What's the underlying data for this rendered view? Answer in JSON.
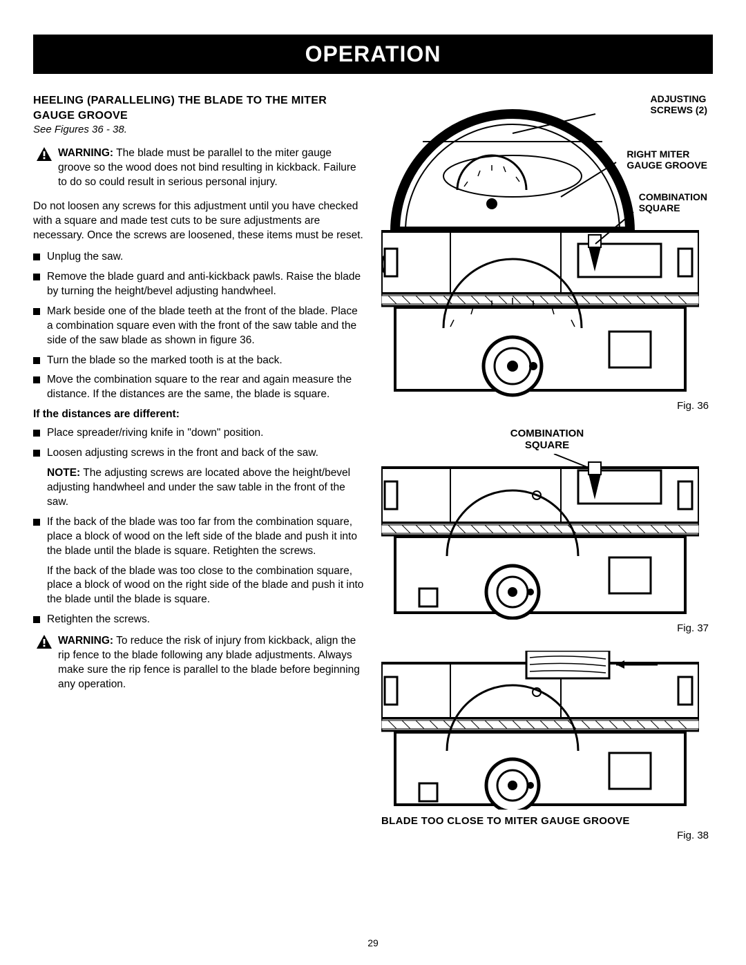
{
  "header": "OPERATION",
  "pageNumber": "29",
  "left": {
    "title": "HEELING (PARALLELING) THE BLADE TO THE MITER GAUGE GROOVE",
    "seeFigs": "See Figures 36 - 38.",
    "warning1Label": "WARNING:",
    "warning1Text": " The blade must be parallel to the miter gauge groove so the wood does not bind resulting in kickback. Failure to do so could result in serious personal injury.",
    "para1": "Do not loosen any screws for this adjustment until you have checked with a square and made test cuts to be sure adjustments are necessary. Once the screws are loosened, these items must be reset.",
    "steps1": [
      "Unplug the saw.",
      "Remove the blade guard and anti-kickback pawls. Raise the blade by turning the height/bevel adjusting handwheel.",
      "Mark beside one of the blade teeth at the front of the blade. Place a combination square even with the front of the saw table and the side of the saw blade as shown in figure 36.",
      "Turn the blade so the marked tooth is at the back.",
      "Move the combination square to the rear and again measure the distance. If the distances are the same, the blade is square."
    ],
    "subhead": "If the distances are different:",
    "steps2a": [
      "Place spreader/riving knife in \"down\" position.",
      "Loosen adjusting screws in the front and back of the saw."
    ],
    "noteLabel": "NOTE:",
    "noteText": " The adjusting screws are located above the height/bevel adjusting handwheel and under the saw table in the front of the saw.",
    "step3": "If the back of the blade was too far from the combination square, place a block of wood on the left side of the blade and push it into the blade until the blade is square. Retighten the screws.",
    "para2": "If the back of the blade was too close to the combination square, place a block of wood on the right side of the blade and push it into the blade until the blade is square.",
    "step4": "Retighten the screws.",
    "warning2Label": "WARNING:",
    "warning2Text": " To reduce the risk of injury from kickback, align the rip fence to the blade following any blade adjustments. Always make sure the rip fence is parallel to the blade before beginning any operation."
  },
  "right": {
    "fig36": {
      "adjustingScrews": "ADJUSTING SCREWS (2)",
      "rightMiter": "RIGHT MITER GAUGE GROOVE",
      "comboSquare": "COMBINATION SQUARE",
      "caption": "Fig. 36"
    },
    "fig37": {
      "comboSquare": "COMBINATION SQUARE",
      "caption": "Fig. 37"
    },
    "fig38": {
      "title": "BLADE TOO CLOSE TO MITER GAUGE GROOVE",
      "caption": "Fig. 38"
    }
  }
}
